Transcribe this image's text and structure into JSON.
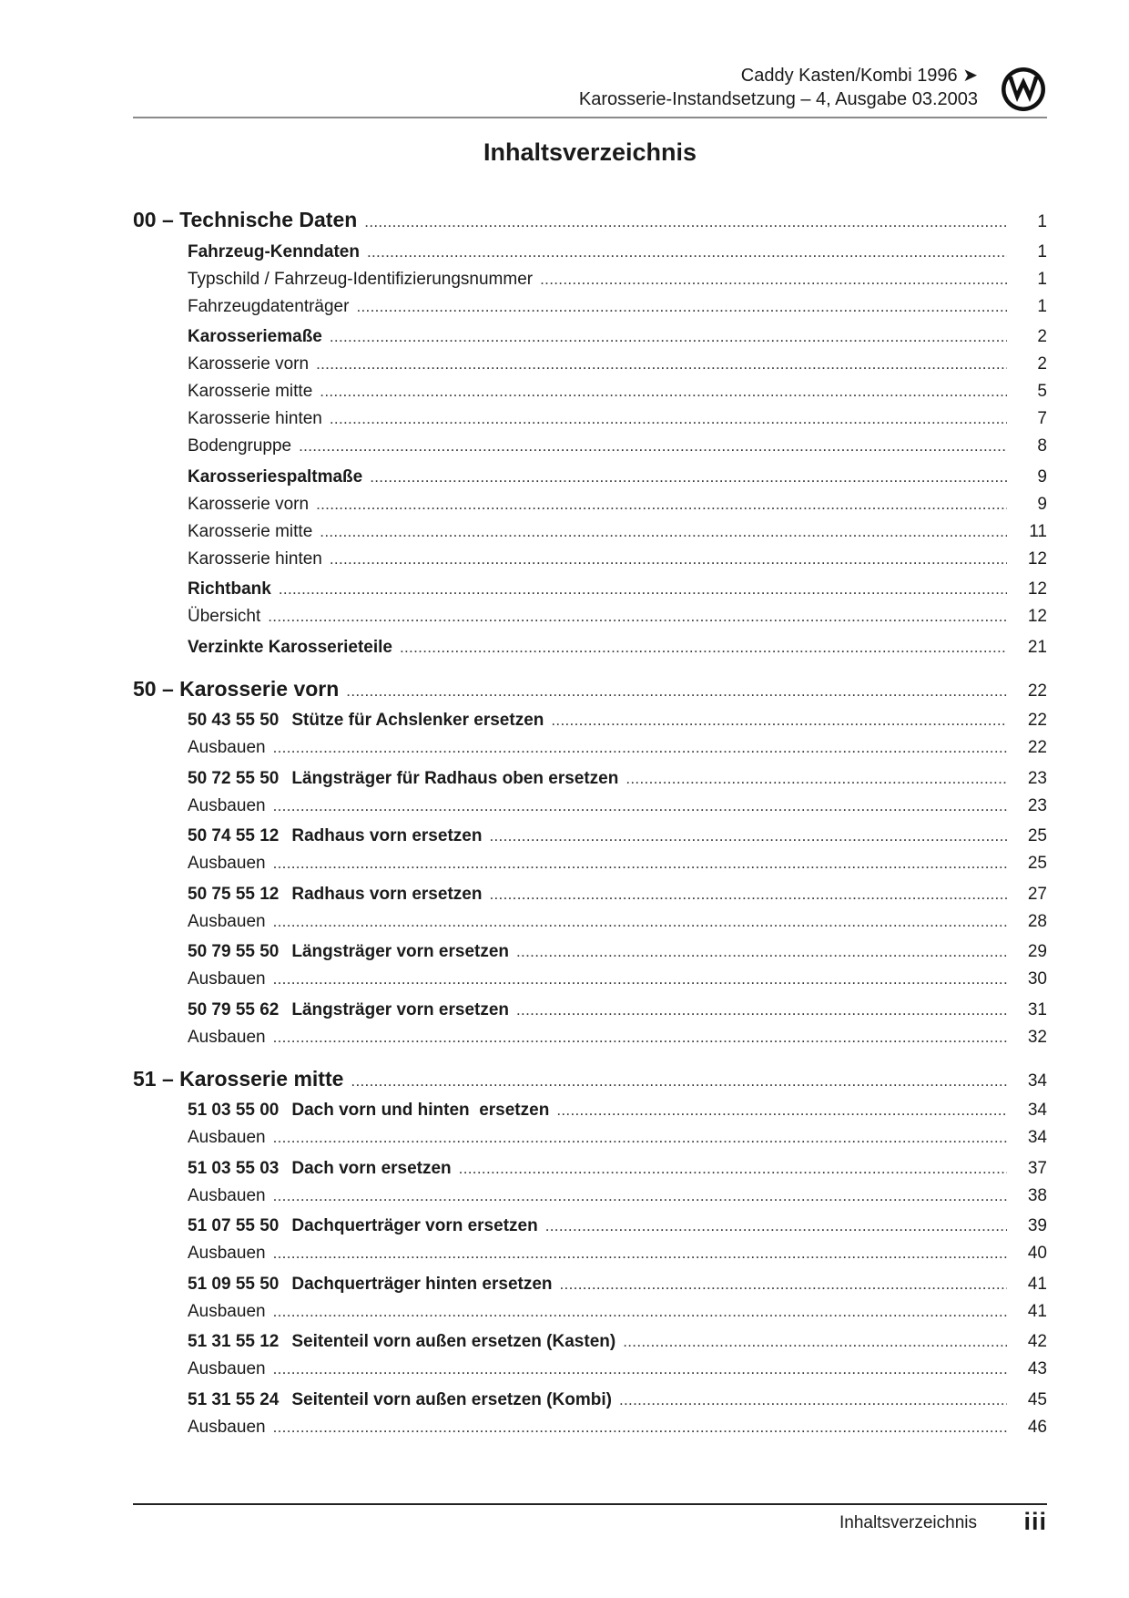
{
  "header": {
    "line1": "Caddy Kasten/Kombi 1996 ➤",
    "line2": "Karosserie-Instandsetzung – 4, Ausgabe 03.2003",
    "logo": "VW"
  },
  "title": "Inhaltsverzeichnis",
  "toc": [
    {
      "type": "chapter",
      "text": "00 – Technische Daten",
      "page": "1"
    },
    {
      "type": "bold",
      "text": "Fahrzeug-Kenndaten",
      "page": "1"
    },
    {
      "type": "normal",
      "text": "Typschild / Fahrzeug-Identifizierungsnummer",
      "page": "1"
    },
    {
      "type": "normal",
      "text": "Fahrzeugdatenträger",
      "page": "1"
    },
    {
      "type": "bold",
      "text": "Karosseriemaße",
      "page": "2"
    },
    {
      "type": "normal",
      "text": "Karosserie vorn",
      "page": "2"
    },
    {
      "type": "normal",
      "text": "Karosserie mitte",
      "page": "5"
    },
    {
      "type": "normal",
      "text": "Karosserie hinten",
      "page": "7"
    },
    {
      "type": "normal",
      "text": "Bodengruppe",
      "page": "8"
    },
    {
      "type": "bold",
      "text": "Karosseriespaltmaße",
      "page": "9"
    },
    {
      "type": "normal",
      "text": "Karosserie vorn",
      "page": "9"
    },
    {
      "type": "normal",
      "text": "Karosserie mitte",
      "page": "11"
    },
    {
      "type": "normal",
      "text": "Karosserie hinten",
      "page": "12"
    },
    {
      "type": "bold",
      "text": "Richtbank",
      "page": "12"
    },
    {
      "type": "normal",
      "text": "Übersicht",
      "page": "12"
    },
    {
      "type": "bold",
      "text": "Verzinkte Karosserieteile",
      "page": "21"
    },
    {
      "type": "chapter",
      "text": "50 – Karosserie vorn",
      "page": "22"
    },
    {
      "type": "bold",
      "code": "50 43 55 50",
      "text": "Stütze für Achslenker ersetzen",
      "page": "22"
    },
    {
      "type": "normal",
      "text": "Ausbauen",
      "page": "22"
    },
    {
      "type": "bold",
      "code": "50 72 55 50",
      "text": "Längsträger für Radhaus oben ersetzen",
      "page": "23"
    },
    {
      "type": "normal",
      "text": "Ausbauen",
      "page": "23"
    },
    {
      "type": "bold",
      "code": "50 74 55 12",
      "text": "Radhaus vorn ersetzen",
      "page": "25"
    },
    {
      "type": "normal",
      "text": "Ausbauen",
      "page": "25"
    },
    {
      "type": "bold",
      "code": "50 75 55 12",
      "text": "Radhaus vorn ersetzen",
      "page": "27"
    },
    {
      "type": "normal",
      "text": "Ausbauen",
      "page": "28"
    },
    {
      "type": "bold",
      "code": "50 79 55 50",
      "text": "Längsträger vorn ersetzen",
      "page": "29"
    },
    {
      "type": "normal",
      "text": "Ausbauen",
      "page": "30"
    },
    {
      "type": "bold",
      "code": "50 79 55 62",
      "text": "Längsträger vorn ersetzen",
      "page": "31"
    },
    {
      "type": "normal",
      "text": "Ausbauen",
      "page": "32"
    },
    {
      "type": "chapter",
      "text": "51 – Karosserie mitte",
      "page": "34"
    },
    {
      "type": "bold",
      "code": "51 03 55 00",
      "text": "Dach vorn und hinten  ersetzen",
      "page": "34"
    },
    {
      "type": "normal",
      "text": "Ausbauen",
      "page": "34"
    },
    {
      "type": "bold",
      "code": "51 03 55 03",
      "text": "Dach vorn ersetzen",
      "page": "37"
    },
    {
      "type": "normal",
      "text": "Ausbauen",
      "page": "38"
    },
    {
      "type": "bold",
      "code": "51 07 55 50",
      "text": "Dachquerträger vorn ersetzen",
      "page": "39"
    },
    {
      "type": "normal",
      "text": "Ausbauen",
      "page": "40"
    },
    {
      "type": "bold",
      "code": "51 09 55 50",
      "text": "Dachquerträger hinten ersetzen",
      "page": "41"
    },
    {
      "type": "normal",
      "text": "Ausbauen",
      "page": "41"
    },
    {
      "type": "bold",
      "code": "51 31 55 12",
      "text": "Seitenteil vorn außen ersetzen (Kasten)",
      "page": "42"
    },
    {
      "type": "normal",
      "text": "Ausbauen",
      "page": "43"
    },
    {
      "type": "bold",
      "code": "51 31 55 24",
      "text": "Seitenteil vorn außen ersetzen (Kombi)",
      "page": "45"
    },
    {
      "type": "normal",
      "text": "Ausbauen",
      "page": "46"
    }
  ],
  "footer": {
    "section": "Inhaltsverzeichnis",
    "page": "iii"
  }
}
